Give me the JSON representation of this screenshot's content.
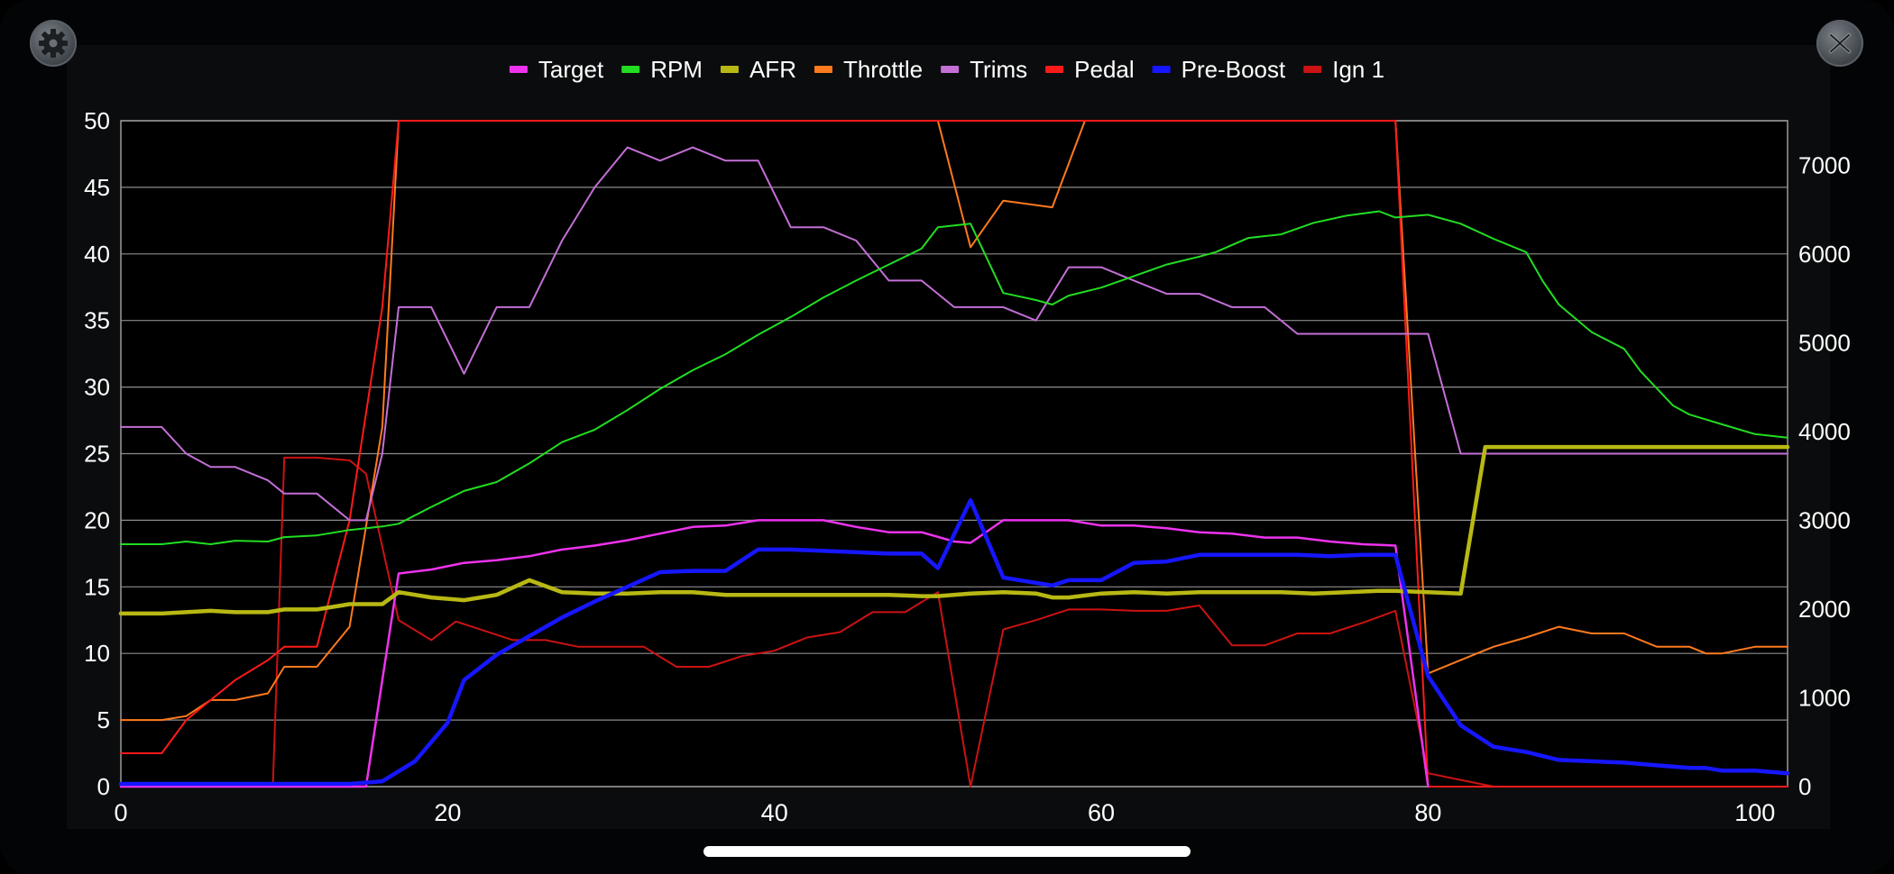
{
  "buttons": {
    "settings_icon": "gear-icon",
    "close_icon": "close-x-icon"
  },
  "chart_data": {
    "type": "line",
    "title": "",
    "xlabel": "",
    "ylabel": "",
    "y2label": "",
    "xlim": [
      0,
      102
    ],
    "ylim": [
      0,
      50
    ],
    "y2lim": [
      0,
      7500
    ],
    "x_ticks": [
      0,
      20,
      40,
      60,
      80,
      100
    ],
    "y_ticks": [
      0,
      5,
      10,
      15,
      20,
      25,
      30,
      35,
      40,
      45,
      50
    ],
    "y2_ticks": [
      0,
      1000,
      2000,
      3000,
      4000,
      5000,
      6000,
      7000
    ],
    "grid": true,
    "legend_position": "top-center",
    "series": [
      {
        "name": "Target",
        "color": "#ee33ee",
        "width": 2.5,
        "axis": "left",
        "x": [
          0,
          2.5,
          4,
          5.5,
          7,
          9,
          11,
          13,
          15,
          17,
          19,
          21,
          23,
          25,
          27,
          29,
          31,
          33,
          35,
          37,
          39,
          41,
          43,
          45,
          47,
          49,
          51,
          52,
          54,
          56,
          58,
          60,
          62,
          64,
          66,
          68,
          70,
          72,
          74,
          76,
          78,
          80
        ],
        "y": [
          0,
          0,
          0,
          0,
          0,
          0,
          0,
          0,
          0,
          16,
          16.3,
          16.8,
          17,
          17.3,
          17.8,
          18.1,
          18.5,
          19,
          19.5,
          19.6,
          20,
          20,
          20,
          19.5,
          19.1,
          19.1,
          18.4,
          18.3,
          20,
          20,
          20,
          19.6,
          19.6,
          19.4,
          19.1,
          19,
          18.7,
          18.7,
          18.4,
          18.2,
          18.1,
          0
        ]
      },
      {
        "name": "RPM",
        "color": "#22dd22",
        "width": 2,
        "axis": "right",
        "x": [
          0,
          2.5,
          4,
          5.5,
          7,
          9,
          10,
          12,
          14,
          16,
          17,
          19,
          21,
          23,
          25,
          27,
          29,
          31,
          33,
          35,
          37,
          39,
          41,
          43,
          45,
          47,
          49,
          50,
          52,
          54,
          56,
          57,
          58,
          60,
          62,
          64,
          66,
          67,
          69,
          71,
          73,
          75,
          77,
          78,
          80,
          82,
          84,
          86,
          87,
          88,
          90,
          92,
          93,
          95,
          96,
          98,
          100,
          102
        ],
        "y": [
          2730,
          2730,
          2760,
          2730,
          2770,
          2760,
          2810,
          2830,
          2890,
          2930,
          2960,
          3150,
          3330,
          3430,
          3640,
          3880,
          4020,
          4240,
          4480,
          4690,
          4870,
          5090,
          5290,
          5510,
          5700,
          5880,
          6060,
          6300,
          6340,
          5560,
          5480,
          5430,
          5530,
          5620,
          5750,
          5880,
          5970,
          6020,
          6180,
          6220,
          6350,
          6430,
          6480,
          6410,
          6440,
          6340,
          6170,
          6020,
          5700,
          5430,
          5120,
          4930,
          4680,
          4290,
          4190,
          4080,
          3970,
          3930
        ]
      },
      {
        "name": "AFR",
        "color": "#b8b814",
        "width": 4.5,
        "axis": "left",
        "x": [
          0,
          2.5,
          4,
          5.5,
          7,
          9,
          10,
          12,
          14,
          16,
          17,
          19,
          21,
          23,
          25,
          27,
          29,
          31,
          33,
          35,
          37,
          39,
          41,
          43,
          45,
          47,
          49,
          50,
          52,
          54,
          56,
          57,
          58,
          60,
          62,
          64,
          66,
          67,
          69,
          71,
          73,
          75,
          77,
          78,
          80,
          82,
          83.5,
          86,
          90,
          95,
          100,
          102
        ],
        "y": [
          13,
          13,
          13.1,
          13.2,
          13.1,
          13.1,
          13.3,
          13.3,
          13.7,
          13.7,
          14.6,
          14.2,
          14,
          14.4,
          15.5,
          14.6,
          14.5,
          14.5,
          14.6,
          14.6,
          14.4,
          14.4,
          14.4,
          14.4,
          14.4,
          14.4,
          14.3,
          14.3,
          14.5,
          14.6,
          14.5,
          14.2,
          14.2,
          14.5,
          14.6,
          14.5,
          14.6,
          14.6,
          14.6,
          14.6,
          14.5,
          14.6,
          14.7,
          14.7,
          14.6,
          14.5,
          25.5,
          25.5,
          25.5,
          25.5,
          25.5,
          25.5
        ]
      },
      {
        "name": "Throttle",
        "color": "#ff7a1e",
        "width": 2,
        "axis": "left",
        "x": [
          0,
          2.5,
          4,
          5.5,
          7,
          9,
          10,
          12,
          14,
          16,
          17,
          50,
          52,
          54,
          57,
          59,
          78,
          80,
          82,
          84,
          86,
          88,
          90,
          92,
          94,
          96,
          97,
          98,
          100,
          102
        ],
        "y": [
          5,
          5,
          5.3,
          6.5,
          6.5,
          7,
          9,
          9,
          12,
          27,
          50,
          50,
          40.5,
          44,
          43.5,
          50,
          50,
          8.5,
          9.5,
          10.5,
          11.2,
          12,
          11.5,
          11.5,
          10.5,
          10.5,
          10,
          10,
          10.5,
          10.5
        ]
      },
      {
        "name": "Trims",
        "color": "#c36fd6",
        "width": 2,
        "axis": "left",
        "x": [
          0,
          2.5,
          4,
          5.5,
          7,
          9,
          10,
          12,
          14,
          15,
          16,
          17,
          18,
          19,
          21,
          23,
          25,
          27,
          29,
          31,
          33,
          35,
          37,
          39,
          41,
          43,
          45,
          47,
          49,
          51,
          52,
          54,
          56,
          58,
          60,
          62,
          64,
          66,
          68,
          70,
          72,
          74,
          76,
          78,
          80,
          82,
          84,
          86,
          88,
          90,
          95,
          100,
          102
        ],
        "y": [
          27,
          27,
          25,
          24,
          24,
          23,
          22,
          22,
          20,
          20,
          25,
          36,
          36,
          36,
          31,
          36,
          36,
          41,
          45,
          48,
          47,
          48,
          47,
          47,
          42,
          42,
          41,
          38,
          38,
          36,
          36,
          36,
          35,
          39,
          39,
          38,
          37,
          37,
          36,
          36,
          34,
          34,
          34,
          34,
          34,
          25,
          25,
          25,
          25,
          25,
          25,
          25,
          25
        ]
      },
      {
        "name": "Pedal",
        "color": "#ff1a1a",
        "width": 2,
        "axis": "left",
        "x": [
          0,
          2.5,
          4,
          5.5,
          7,
          9,
          10,
          12,
          14,
          16,
          17,
          78,
          80,
          102
        ],
        "y": [
          2.5,
          2.5,
          5,
          6.5,
          8,
          9.5,
          10.5,
          10.5,
          20,
          36,
          50,
          50,
          0,
          0
        ]
      },
      {
        "name": "Pre-Boost",
        "color": "#1616ff",
        "width": 4.5,
        "axis": "left",
        "x": [
          0,
          2,
          4,
          6,
          8,
          10,
          12,
          14,
          16,
          18,
          20,
          21,
          23,
          25,
          27,
          29,
          31,
          33,
          35,
          37,
          39,
          41,
          43,
          45,
          47,
          49,
          50,
          52,
          54,
          56,
          57,
          58,
          60,
          62,
          64,
          66,
          68,
          70,
          72,
          74,
          76,
          78,
          80,
          82,
          84,
          86,
          88,
          90,
          92,
          94,
          96,
          97,
          98,
          100,
          102
        ],
        "y": [
          0.2,
          0.2,
          0.2,
          0.2,
          0.2,
          0.2,
          0.2,
          0.2,
          0.4,
          1.9,
          4.8,
          8,
          9.9,
          11.3,
          12.7,
          13.9,
          15,
          16.1,
          16.2,
          16.2,
          17.8,
          17.8,
          17.7,
          17.6,
          17.5,
          17.5,
          16.4,
          21.5,
          15.7,
          15.3,
          15.1,
          15.5,
          15.5,
          16.8,
          16.9,
          17.4,
          17.4,
          17.4,
          17.4,
          17.3,
          17.4,
          17.4,
          8.3,
          4.6,
          3,
          2.6,
          2,
          1.9,
          1.8,
          1.6,
          1.4,
          1.4,
          1.2,
          1.2,
          1
        ]
      },
      {
        "name": "Ign 1",
        "color": "#cc1212",
        "width": 2,
        "axis": "left",
        "x": [
          0,
          2,
          4,
          6,
          8,
          9.3,
          10,
          12,
          14,
          15,
          17,
          19,
          20.5,
          22,
          24,
          26,
          28,
          30,
          32,
          34,
          36,
          38,
          40,
          42,
          44,
          46,
          48,
          50,
          52,
          54,
          56,
          58,
          60,
          62,
          64,
          66,
          68,
          70,
          72,
          74,
          76,
          78,
          80,
          82,
          84,
          86,
          90,
          95,
          100,
          102
        ],
        "y": [
          0,
          0,
          0,
          0,
          0,
          0,
          24.7,
          24.7,
          24.5,
          23.5,
          12.5,
          11,
          12.4,
          11.8,
          11,
          11,
          10.5,
          10.5,
          10.5,
          9,
          9,
          9.8,
          10.2,
          11.2,
          11.6,
          13.1,
          13.1,
          14.6,
          0,
          11.8,
          12.5,
          13.3,
          13.3,
          13.2,
          13.2,
          13.6,
          10.6,
          10.6,
          11.5,
          11.5,
          12.3,
          13.2,
          1,
          0.5,
          0,
          0,
          0,
          0,
          0,
          0
        ]
      }
    ]
  }
}
